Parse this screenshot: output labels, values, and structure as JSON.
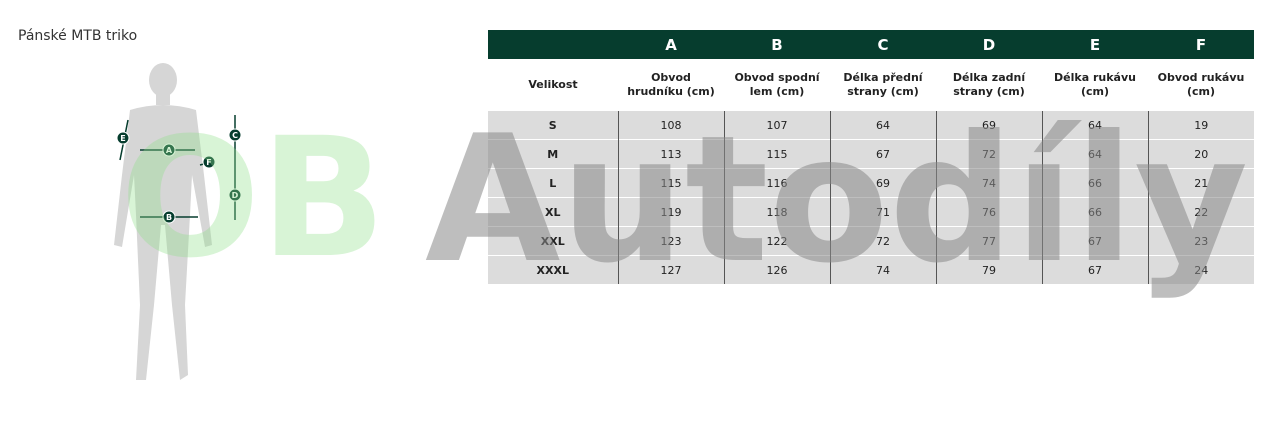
{
  "title": "Pánské MTB triko",
  "figure": {
    "labels": [
      "A",
      "B",
      "C",
      "D",
      "E",
      "F"
    ]
  },
  "table": {
    "letters": [
      "A",
      "B",
      "C",
      "D",
      "E",
      "F"
    ],
    "header": [
      "Velikost",
      "Obvod hrudníku (cm)",
      "Obvod spodní lem (cm)",
      "Délka přední strany (cm)",
      "Délka zadní strany (cm)",
      "Délka rukávu (cm)",
      "Obvod rukávu (cm)"
    ],
    "rows": [
      [
        "S",
        108,
        107,
        64,
        69,
        64,
        19
      ],
      [
        "M",
        113,
        115,
        67,
        72,
        64,
        20
      ],
      [
        "L",
        115,
        116,
        69,
        74,
        66,
        21
      ],
      [
        "XL",
        119,
        118,
        71,
        76,
        66,
        22
      ],
      [
        "XXL",
        123,
        122,
        72,
        77,
        67,
        23
      ],
      [
        "XXXL",
        127,
        126,
        74,
        79,
        67,
        24
      ]
    ]
  },
  "watermark": [
    "OB",
    "Autodíly"
  ]
}
